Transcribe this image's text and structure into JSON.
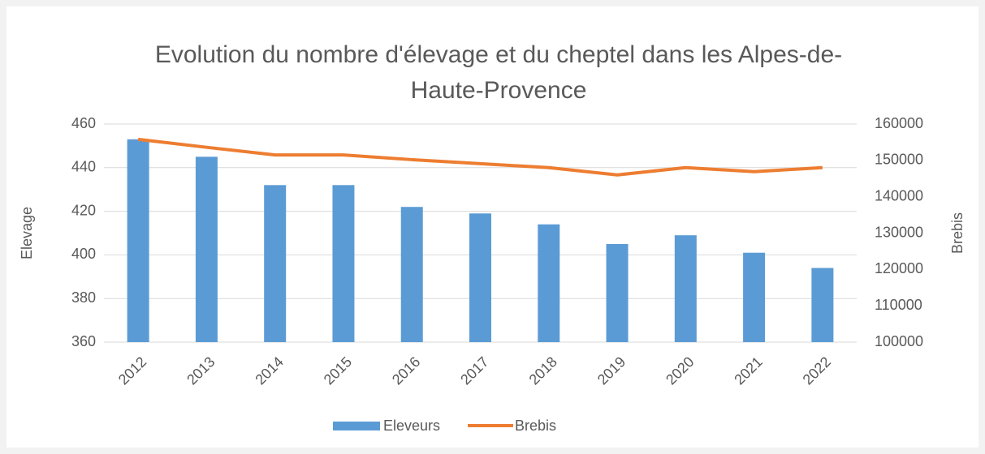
{
  "chart_data": {
    "type": "bar-line",
    "title": "Evolution du nombre d'élevage et du cheptel dans les Alpes-de-Haute-Provence",
    "categories": [
      "2012",
      "2013",
      "2014",
      "2015",
      "2016",
      "2017",
      "2018",
      "2019",
      "2020",
      "2021",
      "2022"
    ],
    "series": [
      {
        "name": "Eleveurs",
        "type": "bar",
        "color": "#5b9bd5",
        "axis": "y",
        "values": [
          453,
          445,
          432,
          432,
          422,
          419,
          414,
          405,
          409,
          401,
          394
        ]
      },
      {
        "name": "Brebis",
        "type": "line",
        "color": "#ed7d31",
        "axis": "y2",
        "values": [
          155800,
          153600,
          151500,
          151500,
          150200,
          149100,
          148000,
          146000,
          148000,
          146900,
          148000
        ]
      }
    ],
    "ylabel": "Elevage",
    "y2label": "Brebis",
    "ylim": [
      360,
      460
    ],
    "yticks": [
      360,
      380,
      400,
      420,
      440,
      460
    ],
    "y2lim": [
      100000,
      160000
    ],
    "y2ticks": [
      100000,
      110000,
      120000,
      130000,
      140000,
      150000,
      160000
    ],
    "grid": true,
    "legend": "bottom"
  }
}
